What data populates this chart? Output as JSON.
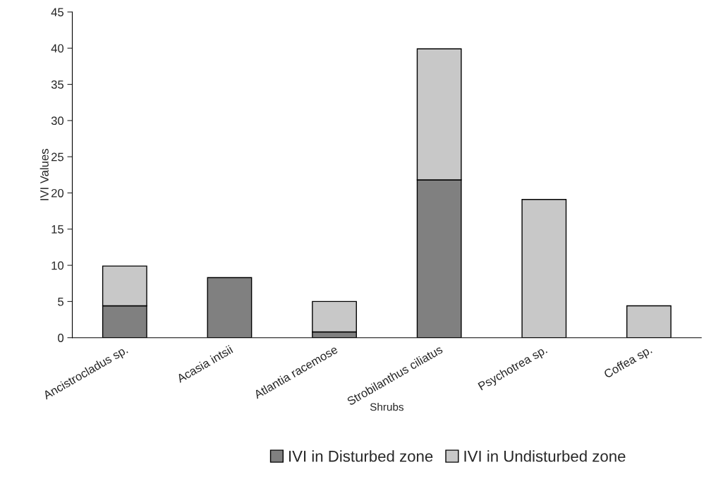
{
  "chart_data": {
    "type": "bar",
    "stacked": true,
    "xlabel": "Shrubs",
    "ylabel": "IVI Values",
    "categories": [
      "Ancistrocladus sp.",
      "Acasia intsii",
      "Atlantia racemose",
      "Strobilanthus ciliatus",
      "Psychotrea sp.",
      "Coffea sp."
    ],
    "series": [
      {
        "name": "IVI in Disturbed zone",
        "color": "#808080",
        "values": [
          4.4,
          8.3,
          0.8,
          21.8,
          null,
          null
        ]
      },
      {
        "name": "IVI in Undisturbed zone",
        "color": "#c8c8c8",
        "values": [
          5.5,
          null,
          4.2,
          18.1,
          19.1,
          4.4
        ]
      }
    ],
    "ylim": [
      0,
      45
    ],
    "yticks": [
      0,
      5,
      10,
      15,
      20,
      25,
      30,
      35,
      40,
      45
    ],
    "grid": false,
    "legend": "bottom"
  }
}
